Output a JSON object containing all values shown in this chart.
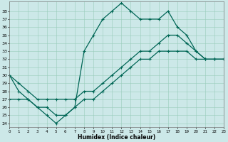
{
  "xlabel": "Humidex (Indice chaleur)",
  "xlim": [
    0,
    23
  ],
  "ylim": [
    23.5,
    39.2
  ],
  "xticks": [
    0,
    1,
    2,
    3,
    4,
    5,
    6,
    7,
    8,
    9,
    10,
    11,
    12,
    13,
    14,
    15,
    16,
    17,
    18,
    19,
    20,
    21,
    22,
    23
  ],
  "yticks": [
    24,
    25,
    26,
    27,
    28,
    29,
    30,
    31,
    32,
    33,
    34,
    35,
    36,
    37,
    38
  ],
  "bg_color": "#cce8e8",
  "grid_color": "#99ccbb",
  "line_color": "#006655",
  "line1_y": [
    30,
    28,
    27,
    26,
    25,
    24,
    25,
    26,
    33,
    35,
    37,
    38,
    39,
    38,
    37,
    37,
    37,
    38,
    36,
    35,
    33,
    32,
    32,
    32
  ],
  "line2_y": [
    30,
    29,
    28,
    27,
    27,
    27,
    27,
    27,
    28,
    28,
    29,
    30,
    31,
    32,
    33,
    33,
    34,
    35,
    35,
    34,
    33,
    32,
    32,
    32
  ],
  "line3_y": [
    27,
    27,
    27,
    26,
    26,
    25,
    25,
    26,
    27,
    27,
    28,
    29,
    30,
    31,
    32,
    32,
    33,
    33,
    33,
    33,
    32,
    32,
    32,
    32
  ]
}
